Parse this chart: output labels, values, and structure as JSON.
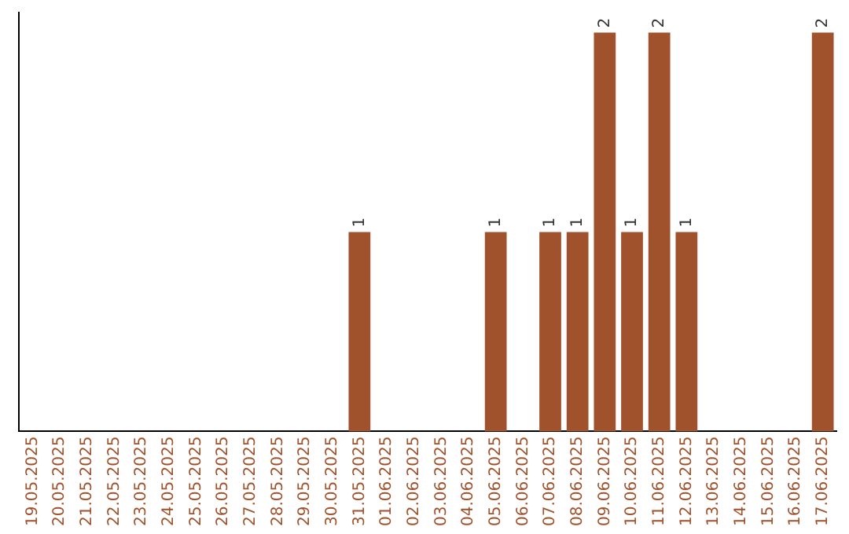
{
  "chart_data": {
    "type": "bar",
    "categories": [
      "19.05.2025",
      "20.05.2025",
      "21.05.2025",
      "22.05.2025",
      "23.05.2025",
      "24.05.2025",
      "25.05.2025",
      "26.05.2025",
      "27.05.2025",
      "28.05.2025",
      "29.05.2025",
      "30.05.2025",
      "31.05.2025",
      "01.06.2025",
      "02.06.2025",
      "03.06.2025",
      "04.06.2025",
      "05.06.2025",
      "06.06.2025",
      "07.06.2025",
      "08.06.2025",
      "09.06.2025",
      "10.06.2025",
      "11.06.2025",
      "12.06.2025",
      "13.06.2025",
      "14.06.2025",
      "15.06.2025",
      "16.06.2025",
      "17.06.2025"
    ],
    "values": [
      null,
      null,
      null,
      null,
      null,
      null,
      null,
      null,
      null,
      null,
      null,
      null,
      1,
      null,
      null,
      null,
      null,
      1,
      null,
      1,
      1,
      2,
      1,
      2,
      1,
      null,
      null,
      null,
      null,
      2
    ],
    "data_labels": true,
    "color": "#a0522d",
    "ylim": [
      0,
      2.1
    ],
    "tick_labels": "x",
    "grid": false,
    "legend": false
  }
}
